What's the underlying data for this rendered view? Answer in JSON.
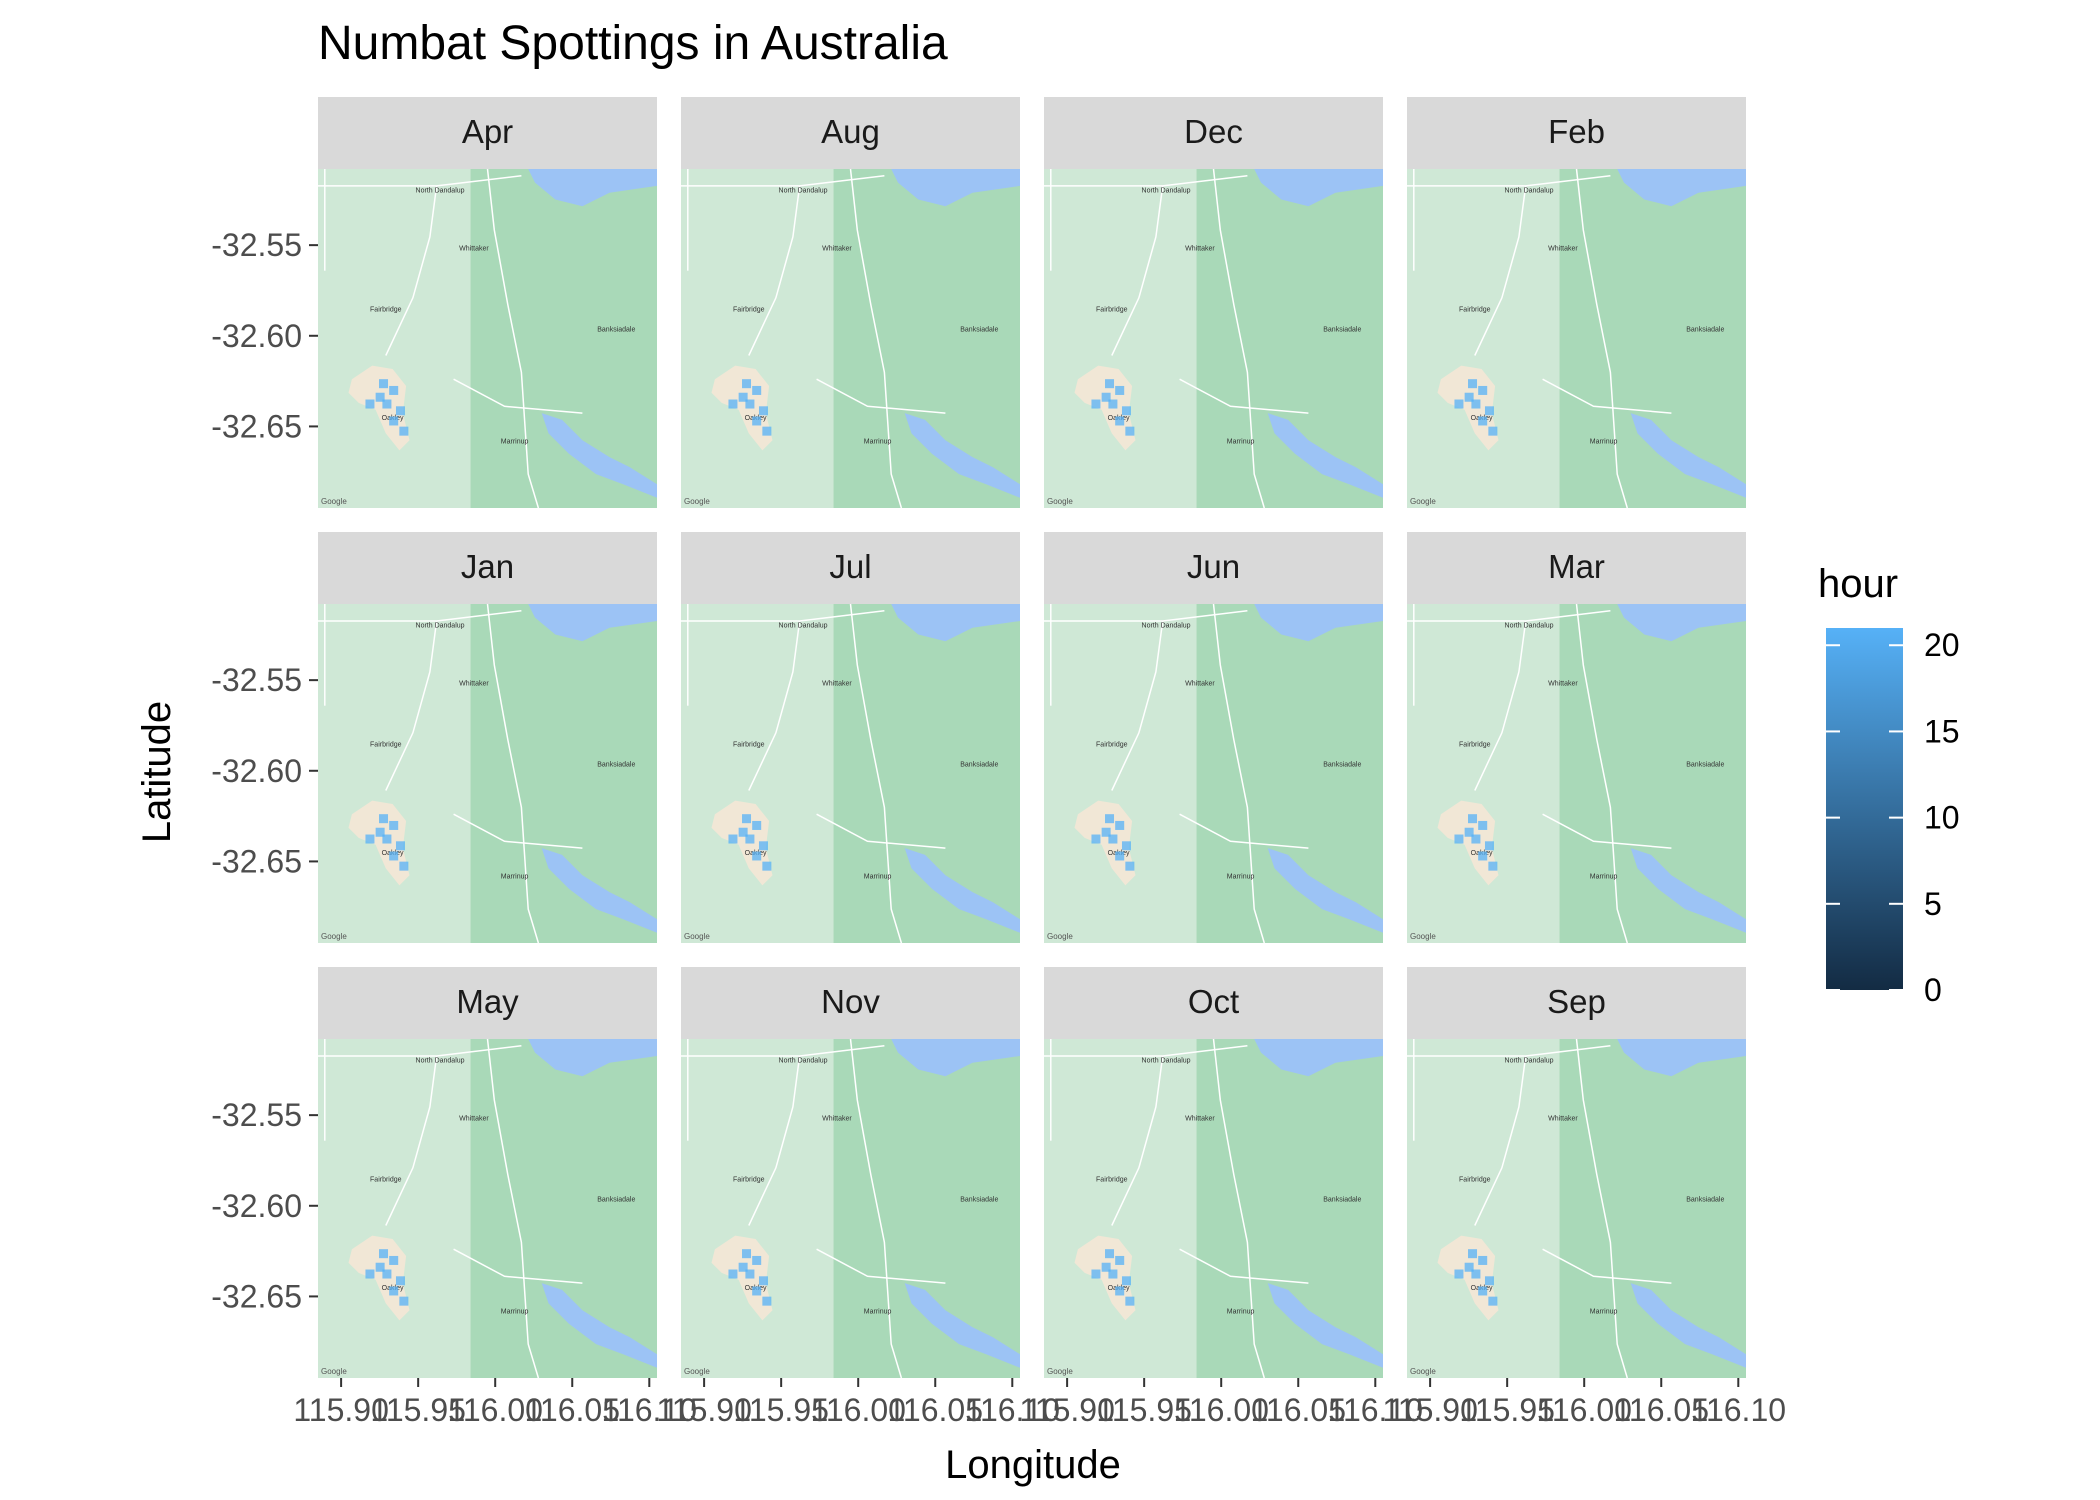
{
  "chart_data": {
    "type": "heatmap",
    "title": "Numbat Spottings in Australia",
    "xlabel": "Longitude",
    "ylabel": "Latitude",
    "xlim": [
      115.885,
      116.105
    ],
    "ylim": [
      -32.695,
      -32.508
    ],
    "x_ticks": [
      115.9,
      115.95,
      116.0,
      116.05,
      116.1
    ],
    "x_tick_labels": [
      "115.90",
      "115.95",
      "116.00",
      "116.05",
      "116.10"
    ],
    "y_ticks": [
      -32.55,
      -32.6,
      -32.65
    ],
    "y_tick_labels": [
      "-32.55",
      "-32.60",
      "-32.65"
    ],
    "facets": [
      "Apr",
      "Aug",
      "Dec",
      "Feb",
      "Jan",
      "Jul",
      "Jun",
      "Mar",
      "May",
      "Nov",
      "Oct",
      "Sep"
    ],
    "grid": false,
    "legend": {
      "title": "hour",
      "position": "right",
      "range": [
        0,
        21
      ],
      "ticks": [
        0,
        5,
        10,
        15,
        20
      ],
      "tick_labels": [
        "0",
        "5",
        "10",
        "15",
        "20"
      ],
      "low_color": "#132B43",
      "high_color": "#56B1F7"
    },
    "basemap": {
      "place_labels": [
        "North Dandalup",
        "Whittaker",
        "Fairbridge",
        "Banksiadale",
        "Oakley",
        "Marrinup"
      ],
      "map_credit": "Google",
      "colors": {
        "land": "#cfe8d6",
        "forest": "#a9d9b8",
        "water": "#9cc3f5",
        "clearing": "#f1e7d6"
      }
    }
  }
}
